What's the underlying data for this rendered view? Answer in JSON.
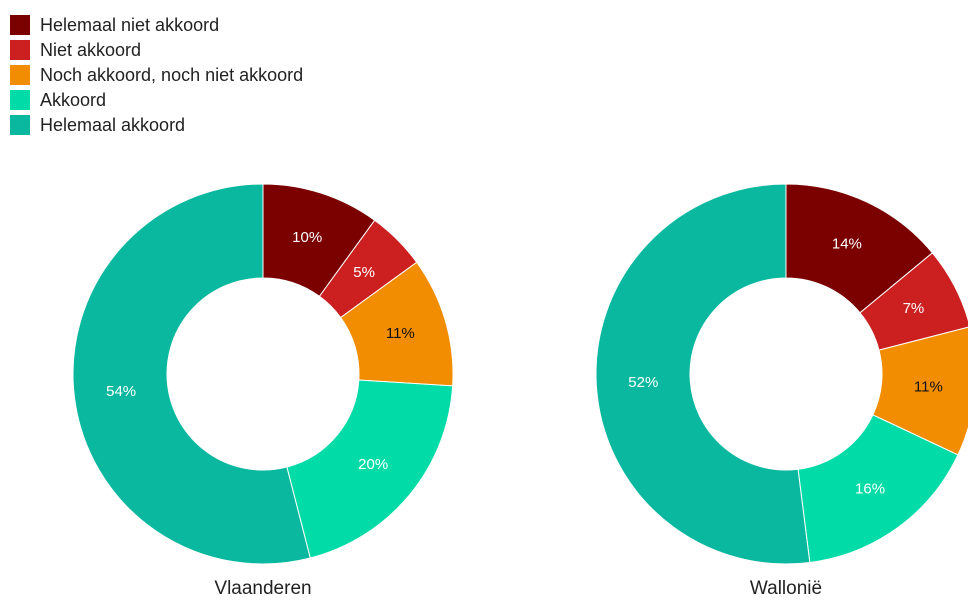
{
  "chart_data": [
    {
      "type": "donut",
      "title": "Vlaanderen",
      "categories": [
        "Helemaal niet akkoord",
        "Niet akkoord",
        "Noch akkoord, noch niet akkoord",
        "Akkoord",
        "Helemaal akkoord"
      ],
      "colors": [
        "#7b0000",
        "#cc2020",
        "#f28c00",
        "#00dba8",
        "#0ab89f"
      ],
      "values": [
        10,
        5,
        11,
        20,
        54
      ],
      "value_labels": [
        "10%",
        "5%",
        "11%",
        "20%",
        "54%"
      ]
    },
    {
      "type": "donut",
      "title": "Wallonië",
      "categories": [
        "Helemaal niet akkoord",
        "Niet akkoord",
        "Noch akkoord, noch niet akkoord",
        "Akkoord",
        "Helemaal akkoord"
      ],
      "colors": [
        "#7b0000",
        "#cc2020",
        "#f28c00",
        "#00dba8",
        "#0ab89f"
      ],
      "values": [
        14,
        7,
        11,
        16,
        52
      ],
      "value_labels": [
        "14%",
        "7%",
        "11%",
        "16%",
        "52%"
      ]
    }
  ]
}
